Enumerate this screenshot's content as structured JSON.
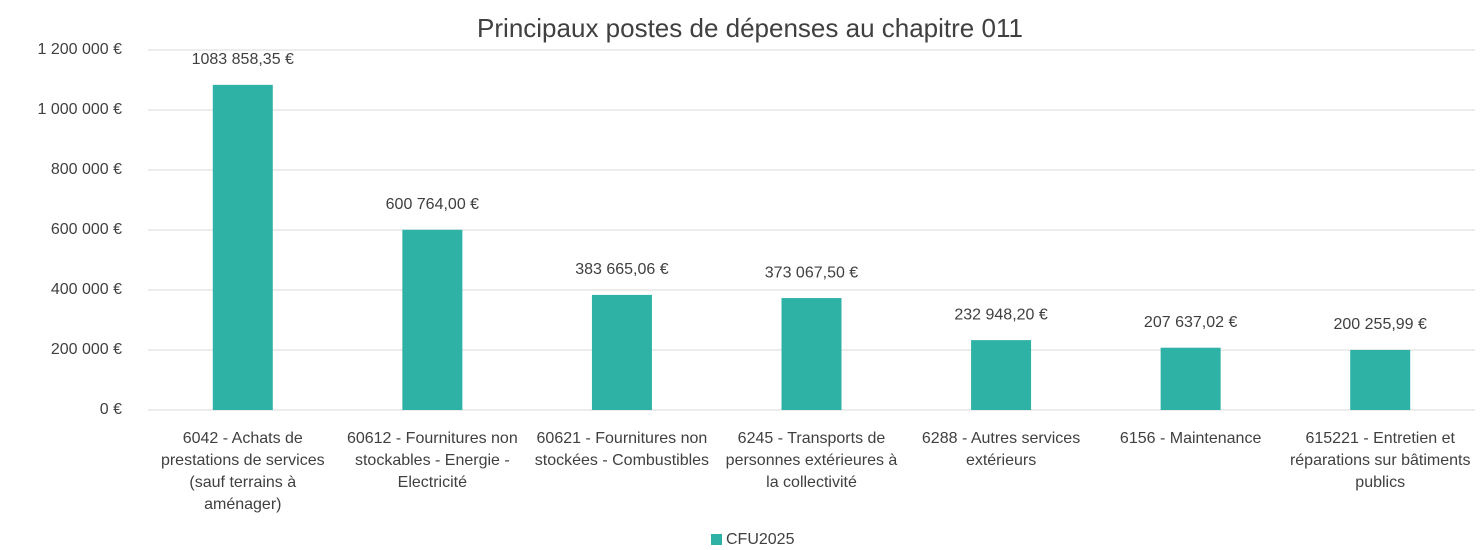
{
  "chart_data": {
    "type": "bar",
    "title": "Principaux postes de dépenses au chapitre 011",
    "categories": [
      "6042 - Achats de prestations de services (sauf terrains à aménager)",
      "60612 - Fournitures non stockables - Energie - Electricité",
      "60621 - Fournitures non stockées - Combustibles",
      "6245 - Transports de personnes extérieures à la collectivité",
      "6288 - Autres services extérieurs",
      "6156 - Maintenance",
      "615221 - Entretien et réparations sur bâtiments publics"
    ],
    "series": [
      {
        "name": "CFU2025",
        "color": "#2eb2a6",
        "values": [
          1083858.35,
          600764.0,
          383665.06,
          373067.5,
          232948.2,
          207637.02,
          200255.99
        ],
        "value_labels": [
          "1083 858,35 €",
          "600 764,00 €",
          "383 665,06 €",
          "373 067,50 €",
          "232 948,20 €",
          "207 637,02 €",
          "200 255,99 €"
        ]
      }
    ],
    "ylim": [
      0,
      1200000
    ],
    "yticks": [
      {
        "value": 0,
        "label": "0 €"
      },
      {
        "value": 200000,
        "label": "200 000 €"
      },
      {
        "value": 400000,
        "label": "400 000 €"
      },
      {
        "value": 600000,
        "label": "600 000 €"
      },
      {
        "value": 800000,
        "label": "800 000 €"
      },
      {
        "value": 1000000,
        "label": "1 000 000 €"
      },
      {
        "value": 1200000,
        "label": "1 200 000 €"
      }
    ],
    "grid": true,
    "legend": "bottom"
  }
}
